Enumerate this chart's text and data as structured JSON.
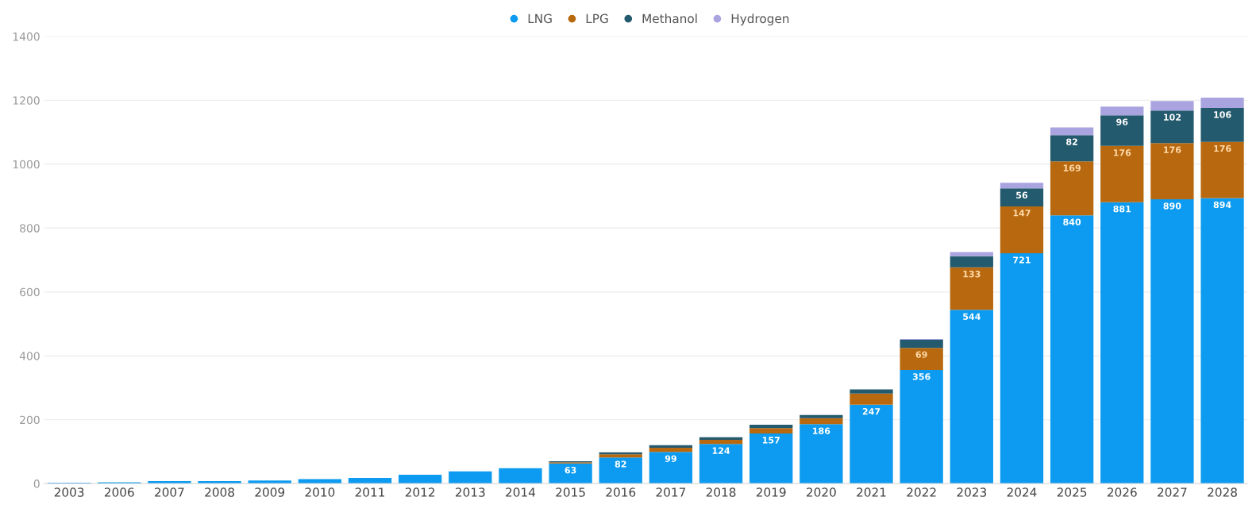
{
  "chart_data": {
    "type": "bar",
    "stacked": true,
    "categories": [
      "2003",
      "2006",
      "2007",
      "2008",
      "2009",
      "2010",
      "2011",
      "2012",
      "2013",
      "2014",
      "2015",
      "2016",
      "2017",
      "2018",
      "2019",
      "2020",
      "2021",
      "2022",
      "2023",
      "2024",
      "2025",
      "2026",
      "2027",
      "2028"
    ],
    "series": [
      {
        "name": "LNG",
        "color": "#0c9bf0",
        "values": [
          3,
          4,
          8,
          8,
          10,
          14,
          18,
          28,
          38,
          48,
          63,
          82,
          99,
          124,
          157,
          186,
          247,
          356,
          544,
          721,
          840,
          881,
          890,
          894
        ],
        "value_labels": [
          null,
          null,
          null,
          null,
          null,
          null,
          null,
          null,
          null,
          null,
          "63",
          "82",
          "99",
          "124",
          "157",
          "186",
          "247",
          "356",
          "544",
          "721",
          "840",
          "881",
          "890",
          "894"
        ]
      },
      {
        "name": "LPG",
        "color": "#b8680e",
        "values": [
          0,
          0,
          0,
          0,
          0,
          0,
          0,
          0,
          0,
          0,
          4,
          10,
          13,
          13,
          17,
          19,
          35,
          69,
          133,
          147,
          169,
          176,
          176,
          176
        ],
        "value_labels": [
          null,
          null,
          null,
          null,
          null,
          null,
          null,
          null,
          null,
          null,
          null,
          null,
          null,
          null,
          null,
          null,
          null,
          "69",
          "133",
          "147",
          "169",
          "176",
          "176",
          "176"
        ]
      },
      {
        "name": "Methanol",
        "color": "#245a6e",
        "values": [
          0,
          0,
          0,
          0,
          0,
          0,
          0,
          0,
          0,
          0,
          3,
          6,
          8,
          8,
          10,
          10,
          13,
          25,
          35,
          56,
          82,
          96,
          102,
          106
        ],
        "value_labels": [
          null,
          null,
          null,
          null,
          null,
          null,
          null,
          null,
          null,
          null,
          null,
          null,
          null,
          null,
          null,
          null,
          null,
          null,
          null,
          "56",
          "82",
          "96",
          "102",
          "106"
        ]
      },
      {
        "name": "Hydrogen",
        "color": "#a9a4e0",
        "values": [
          0,
          0,
          0,
          0,
          0,
          0,
          0,
          0,
          0,
          0,
          0,
          0,
          0,
          0,
          0,
          0,
          0,
          3,
          13,
          18,
          24,
          27,
          30,
          32
        ]
      }
    ],
    "ylim": [
      0,
      1400
    ],
    "yticks": [
      0,
      200,
      400,
      600,
      800,
      1000,
      1200,
      1400
    ],
    "grid": "y",
    "legend": "top"
  }
}
